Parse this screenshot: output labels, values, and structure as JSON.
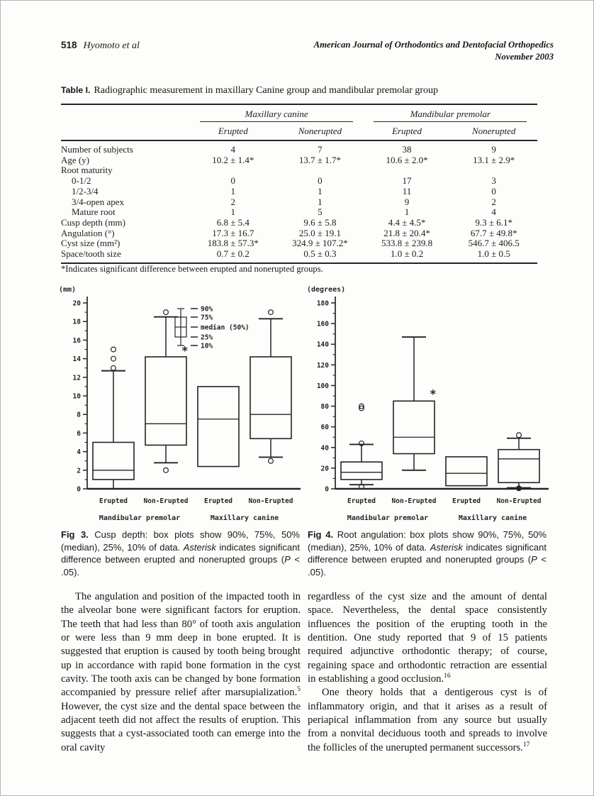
{
  "header": {
    "page_number": "518",
    "running_authors": "Hyomoto et al",
    "journal": "American Journal of Orthodontics and Dentofacial Orthopedics",
    "issue_date": "November 2003"
  },
  "table": {
    "label": "Table I.",
    "title": "Radiographic measurement in maxillary Canine group and mandibular premolar group",
    "group_headers": [
      "Maxillary canine",
      "Mandibular premolar"
    ],
    "sub_headers": [
      "Erupted",
      "Nonerupted",
      "Erupted",
      "Nonerupted"
    ],
    "rows": [
      {
        "label": "Number of subjects",
        "indent": false,
        "values": [
          "4",
          "7",
          "38",
          "9"
        ]
      },
      {
        "label": "Age (y)",
        "indent": false,
        "values": [
          "10.2 ± 1.4*",
          "13.7 ± 1.7*",
          "10.6 ± 2.0*",
          "13.1 ± 2.9*"
        ]
      },
      {
        "label": "Root maturity",
        "indent": false,
        "values": [
          "",
          "",
          "",
          ""
        ]
      },
      {
        "label": "0-1/2",
        "indent": true,
        "values": [
          "0",
          "0",
          "17",
          "3"
        ]
      },
      {
        "label": "1/2-3/4",
        "indent": true,
        "values": [
          "1",
          "1",
          "11",
          "0"
        ]
      },
      {
        "label": "3/4-open apex",
        "indent": true,
        "values": [
          "2",
          "1",
          "9",
          "2"
        ]
      },
      {
        "label": "Mature root",
        "indent": true,
        "values": [
          "1",
          "5",
          "1",
          "4"
        ]
      },
      {
        "label": "Cusp depth (mm)",
        "indent": false,
        "values": [
          "6.8 ± 5.4",
          "9.6 ± 5.8",
          "4.4 ± 4.5*",
          "9.3 ± 6.1*"
        ]
      },
      {
        "label": "Angulation (°)",
        "indent": false,
        "values": [
          "17.3 ± 16.7",
          "25.0 ± 19.1",
          "21.8 ± 20.4*",
          "67.7 ± 49.8*"
        ]
      },
      {
        "label": "Cyst size (mm²)",
        "indent": false,
        "values": [
          "183.8 ± 57.3*",
          "324.9 ± 107.2*",
          "533.8 ± 239.8",
          "546.7 ± 406.5"
        ]
      },
      {
        "label": "Space/tooth size",
        "indent": false,
        "values": [
          "0.7 ± 0.2",
          "0.5 ± 0.3",
          "1.0 ± 0.2",
          "1.0 ± 0.5"
        ]
      }
    ],
    "footnote": "*Indicates significant difference between erupted and nonerupted groups."
  },
  "chart_data": [
    {
      "type": "boxplot",
      "title": "Fig 3. Cusp depth",
      "ylabel": "(mm)",
      "ylim": [
        0,
        20
      ],
      "yticks": [
        0,
        2,
        4,
        6,
        8,
        10,
        12,
        14,
        16,
        18,
        20
      ],
      "legend": [
        "90%",
        "75%",
        "median (50%)",
        "25%",
        "10%"
      ],
      "legend_position": "top-center",
      "categories": [
        "Erupted",
        "Non-Erupted",
        "Erupted",
        "Non-Erupted"
      ],
      "group_labels": [
        "Mandibular premolar",
        "Maxillary canine"
      ],
      "boxes": [
        {
          "whisker_low": 0,
          "q1": 1,
          "median": 2,
          "q3": 5,
          "whisker_high": 12.7,
          "outliers_high": [
            13,
            14,
            15
          ],
          "outliers_low": [],
          "star": null
        },
        {
          "whisker_low": 2.8,
          "q1": 4.7,
          "median": 7,
          "q3": 14.2,
          "whisker_high": 18.5,
          "outliers_high": [
            19
          ],
          "outliers_low": [
            2
          ],
          "star": 14.9
        },
        {
          "whisker_low": 2.4,
          "q1": 2.4,
          "median": 7.5,
          "q3": 11,
          "whisker_high": 11,
          "outliers_high": [],
          "outliers_low": [],
          "star": null
        },
        {
          "whisker_low": 3.4,
          "q1": 5.4,
          "median": 8,
          "q3": 14.2,
          "whisker_high": 18.3,
          "outliers_high": [
            19
          ],
          "outliers_low": [
            3
          ],
          "star": null
        }
      ]
    },
    {
      "type": "boxplot",
      "title": "Fig 4. Root angulation",
      "ylabel": "(degrees)",
      "ylim": [
        0,
        180
      ],
      "yticks": [
        0,
        20,
        40,
        60,
        80,
        100,
        120,
        140,
        160,
        180
      ],
      "legend": null,
      "categories": [
        "Erupted",
        "Non-Erupted",
        "Erupted",
        "Non-Erupted"
      ],
      "group_labels": [
        "Mandibular premolar",
        "Maxillary canine"
      ],
      "boxes": [
        {
          "whisker_low": 4,
          "q1": 9,
          "median": 16,
          "q3": 26,
          "whisker_high": 43,
          "outliers_high": [
            44,
            78,
            80
          ],
          "outliers_low": [
            2
          ],
          "star": null
        },
        {
          "whisker_low": 18,
          "q1": 34,
          "median": 50,
          "q3": 85,
          "whisker_high": 147,
          "outliers_high": [],
          "outliers_low": [],
          "star": 92
        },
        {
          "whisker_low": 3,
          "q1": 3,
          "median": 15,
          "q3": 31,
          "whisker_high": 31,
          "outliers_high": [],
          "outliers_low": [],
          "star": null
        },
        {
          "whisker_low": 1,
          "q1": 6,
          "median": 29,
          "q3": 38,
          "whisker_high": 49,
          "outliers_high": [
            52
          ],
          "outliers_low": [
            {
              "v": 0.5,
              "solid": true
            }
          ],
          "star": null
        }
      ]
    }
  ],
  "figures": {
    "fig3": {
      "label": "Fig 3.",
      "part1": " Cusp depth: box plots show 90%, 75%, 50% (median), 25%, 10% of data. ",
      "em1": "Asterisk",
      "part2": " indicates significant difference between erupted and nonerupted groups (",
      "em2": "P",
      "part3": " < .05)."
    },
    "fig4": {
      "label": "Fig 4.",
      "part1": " Root angulation: box plots show 90%, 75%, 50% (median), 25%, 10% of data. ",
      "em1": "Asterisk",
      "part2": " indicates significant difference between erupted and nonerupted groups (",
      "em2": "P",
      "part3": " < .05)."
    }
  },
  "body": {
    "left": {
      "p1_part1": "The angulation and position of the impacted tooth in the alveolar bone were significant factors for eruption. The teeth that had less than 80° of tooth axis angulation or were less than 9 mm deep in bone erupted. It is suggested that eruption is caused by tooth being brought up in accordance with rapid bone formation in the cyst cavity. The tooth axis can be changed by bone formation accompanied by pressure relief after marsupialization.",
      "sup1": "5",
      "p1_part2": " However, the cyst size and the dental space between the adjacent teeth did not affect the results of eruption. This suggests that a cyst-associated tooth can emerge into the oral cavity"
    },
    "right": {
      "p1_part1": "regardless of the cyst size and the amount of dental space. Nevertheless, the dental space consistently influences the position of the erupting tooth in the dentition. One study reported that 9 of 15 patients required adjunctive orthodontic therapy; of course, regaining space and orthodontic retraction are essential in establishing a good occlusion.",
      "sup1": "16",
      "p2_part1": "One theory holds that a dentigerous cyst is of inflammatory origin, and that it arises as a result of periapical inflammation from any source but usually from a nonvital deciduous tooth and spreads to involve the follicles of the unerupted permanent successors.",
      "sup2": "17"
    }
  }
}
